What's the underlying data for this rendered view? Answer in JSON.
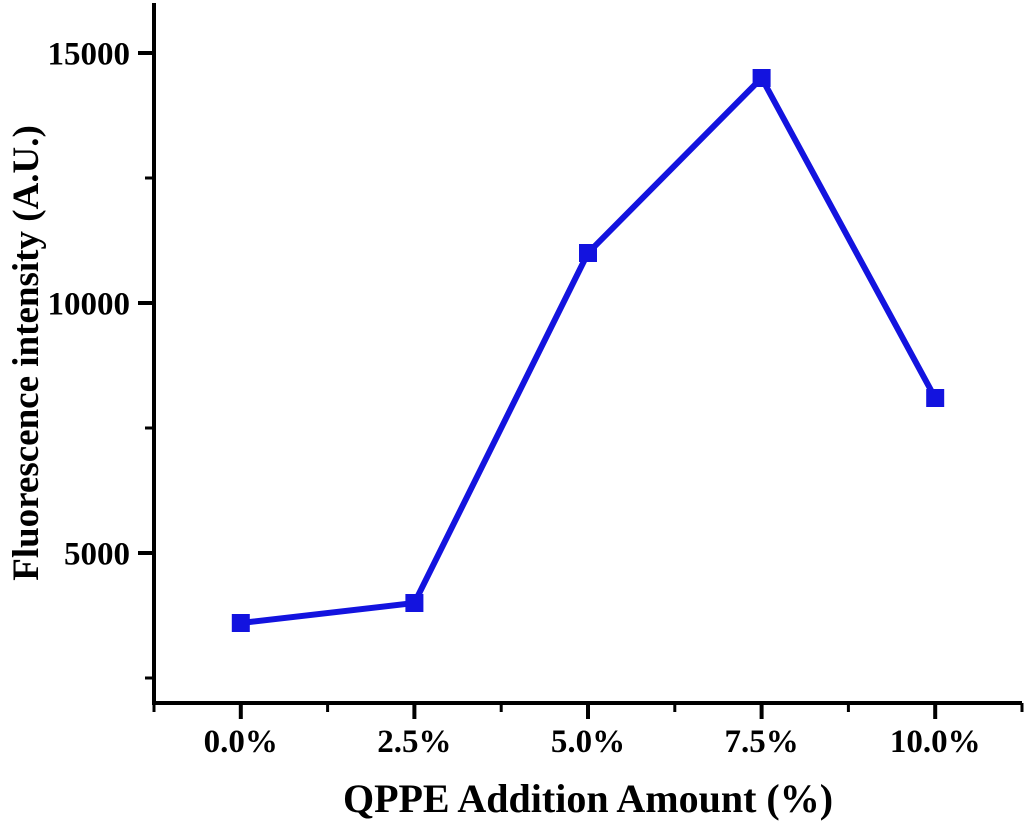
{
  "chart_data": {
    "type": "line",
    "title": "",
    "xlabel": "QPPE Addition Amount (%)",
    "ylabel": "Fluorescence intensity (A.U.)",
    "categories": [
      "0.0%",
      "2.5%",
      "5.0%",
      "7.5%",
      "10.0%"
    ],
    "x": [
      0,
      2.5,
      5,
      7.5,
      10
    ],
    "series": [
      {
        "name": "Fluorescence intensity",
        "values": [
          3600,
          4000,
          11000,
          14500,
          8100
        ],
        "color": "#1313df",
        "marker": "square"
      }
    ],
    "xlim": [
      -1.25,
      11.25
    ],
    "ylim": [
      2000,
      16000
    ],
    "x_major_ticks": [
      0,
      2.5,
      5,
      7.5,
      10
    ],
    "x_minor_ticks": [
      -1.25,
      1.25,
      3.75,
      6.25,
      8.75,
      11.25
    ],
    "y_major_ticks": [
      5000,
      10000,
      15000
    ],
    "y_minor_ticks": [
      2500,
      7500,
      12500
    ],
    "y_tick_labels": [
      "5000",
      "10000",
      "15000"
    ],
    "grid": false,
    "legend": "none"
  },
  "style": {
    "background": "#ffffff",
    "axis_color": "#000000",
    "text_color": "#000000"
  }
}
